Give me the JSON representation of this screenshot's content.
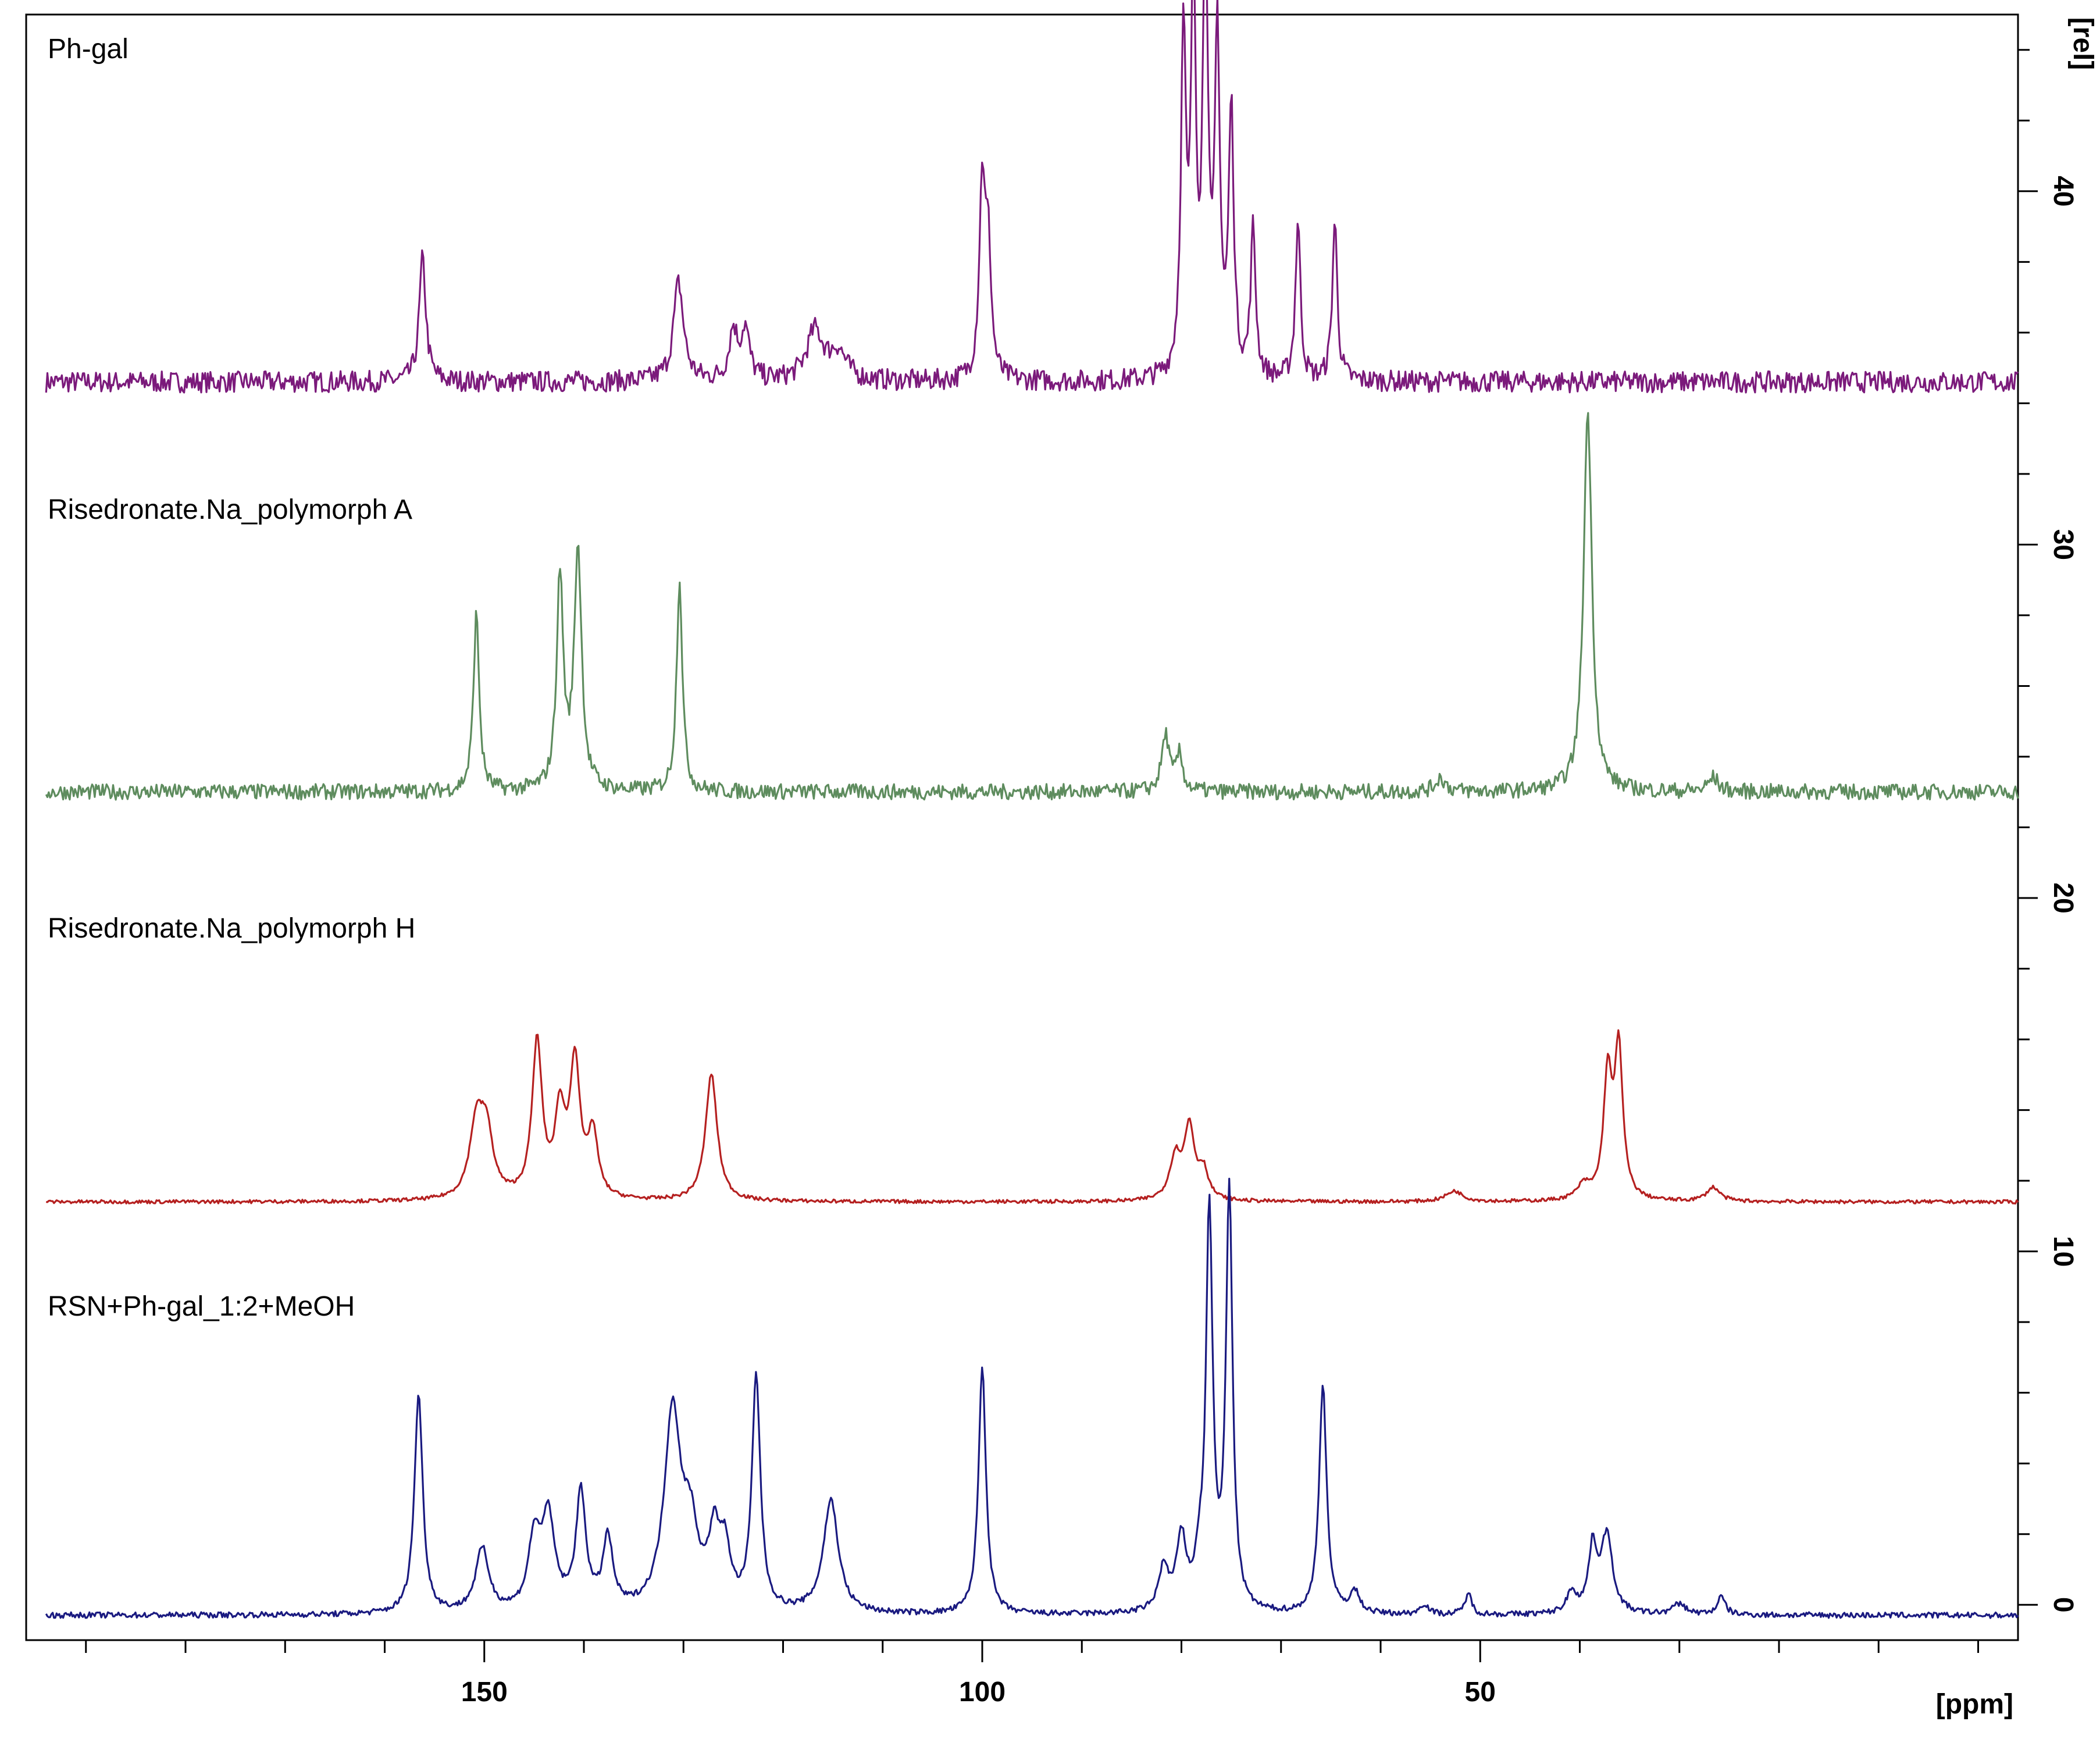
{
  "chart_data": {
    "type": "line",
    "title": "",
    "xlabel": "[ppm]",
    "ylabel": "[rel]",
    "x_axis": {
      "reversed": true,
      "range": [
        196,
        -4
      ],
      "tick_labels": [
        150,
        100,
        50
      ],
      "minor_step": 10
    },
    "y_axis": {
      "position": "right",
      "range": [
        -1,
        45
      ],
      "tick_labels": [
        0,
        10,
        20,
        30,
        40
      ],
      "minor_step": 2
    },
    "grid": false,
    "legend": "none",
    "series": [
      {
        "label": "Ph-gal",
        "color": "#7b1a7b",
        "baseline": 34.6,
        "noise": 0.3,
        "peaks": [
          [
            156.2,
            3.5,
            0.4
          ],
          [
            130.5,
            2.8,
            0.6
          ],
          [
            125.0,
            1.4,
            0.5
          ],
          [
            123.8,
            1.4,
            0.5
          ],
          [
            116.8,
            1.4,
            1.0
          ],
          [
            114.5,
            0.8,
            1.0
          ],
          [
            100.0,
            5.5,
            0.35
          ],
          [
            99.4,
            3.5,
            0.35
          ],
          [
            79.8,
            9.5,
            0.3
          ],
          [
            78.8,
            11.0,
            0.3
          ],
          [
            77.6,
            12.5,
            0.3
          ],
          [
            76.4,
            9.5,
            0.3
          ],
          [
            75.0,
            7.5,
            0.3
          ],
          [
            72.8,
            4.2,
            0.3
          ],
          [
            68.3,
            4.5,
            0.3
          ],
          [
            64.6,
            4.5,
            0.3
          ]
        ]
      },
      {
        "label": "Risedronate.Na_polymorph A",
        "color": "#5e8c5e",
        "baseline": 23.0,
        "noise": 0.22,
        "peaks": [
          [
            150.8,
            5.0,
            0.35
          ],
          [
            142.4,
            6.0,
            0.4
          ],
          [
            140.6,
            6.8,
            0.45
          ],
          [
            130.4,
            6.0,
            0.35
          ],
          [
            81.6,
            1.6,
            0.45
          ],
          [
            80.2,
            1.0,
            0.4
          ],
          [
            39.2,
            10.8,
            0.5
          ],
          [
            54.0,
            0.4,
            0.6
          ],
          [
            26.6,
            0.4,
            0.6
          ]
        ]
      },
      {
        "label": "Risedronate.Na_polymorph H",
        "color": "#b52020",
        "baseline": 11.4,
        "noise": 0.05,
        "peaks": [
          [
            150.8,
            2.0,
            0.8
          ],
          [
            149.8,
            1.8,
            0.8
          ],
          [
            144.7,
            4.4,
            0.6
          ],
          [
            142.4,
            2.3,
            0.6
          ],
          [
            140.9,
            3.8,
            0.6
          ],
          [
            139.1,
            1.8,
            0.6
          ],
          [
            127.2,
            3.6,
            0.7
          ],
          [
            80.6,
            1.2,
            0.7
          ],
          [
            79.2,
            2.0,
            0.6
          ],
          [
            77.8,
            0.8,
            0.6
          ],
          [
            37.2,
            3.4,
            0.5
          ],
          [
            36.1,
            4.2,
            0.5
          ],
          [
            26.6,
            0.4,
            0.8
          ],
          [
            52.6,
            0.3,
            1.0
          ],
          [
            39.6,
            0.4,
            0.8
          ]
        ]
      },
      {
        "label": "RSN+Ph-gal_1:2+MeOH",
        "color": "#1a1a80",
        "baseline": -0.3,
        "noise": 0.08,
        "peaks": [
          [
            156.6,
            6.2,
            0.5
          ],
          [
            150.2,
            1.8,
            0.8
          ],
          [
            145.0,
            1.9,
            0.7
          ],
          [
            143.6,
            2.6,
            0.8
          ],
          [
            140.3,
            3.3,
            0.6
          ],
          [
            137.6,
            2.0,
            0.6
          ],
          [
            131.1,
            5.6,
            1.0
          ],
          [
            129.3,
            2.0,
            0.9
          ],
          [
            126.9,
            2.0,
            0.7
          ],
          [
            125.8,
            1.5,
            0.6
          ],
          [
            122.7,
            6.6,
            0.5
          ],
          [
            115.2,
            3.2,
            0.9
          ],
          [
            100.0,
            7.0,
            0.45
          ],
          [
            81.8,
            1.2,
            0.6
          ],
          [
            80.0,
            2.0,
            0.6
          ],
          [
            78.2,
            1.0,
            0.5
          ],
          [
            77.2,
            11.2,
            0.4
          ],
          [
            75.2,
            11.8,
            0.4
          ],
          [
            65.8,
            6.5,
            0.45
          ],
          [
            62.6,
            0.6,
            0.6
          ],
          [
            55.6,
            0.3,
            0.5
          ],
          [
            51.2,
            0.6,
            0.4
          ],
          [
            40.8,
            0.6,
            0.6
          ],
          [
            38.7,
            1.8,
            0.5
          ],
          [
            37.3,
            2.2,
            0.7
          ],
          [
            30.0,
            0.3,
            0.8
          ],
          [
            25.8,
            0.5,
            0.5
          ]
        ]
      }
    ]
  }
}
